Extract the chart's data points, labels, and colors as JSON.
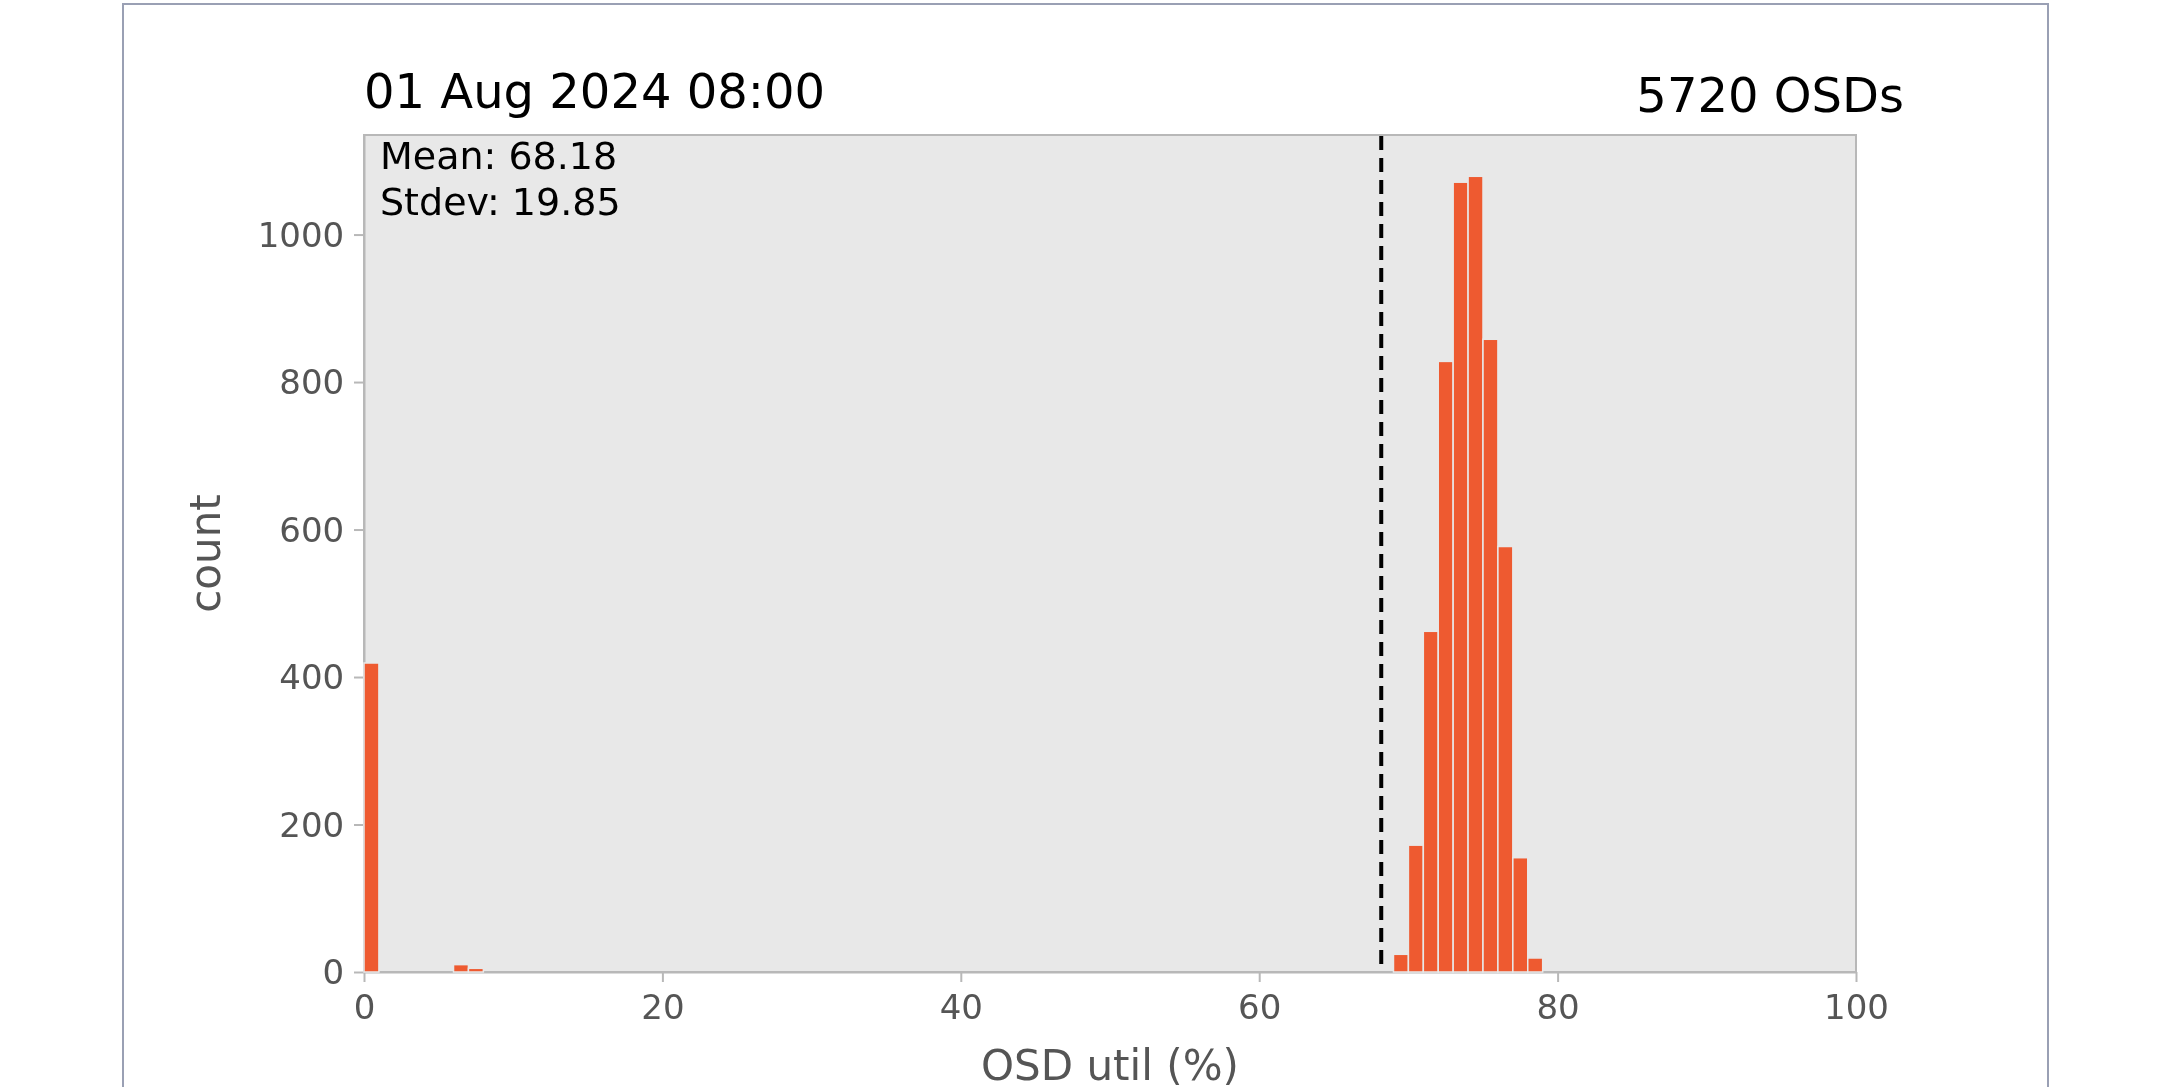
{
  "chart_data": {
    "type": "histogram",
    "title": "01 Aug 2024 08:00",
    "subtitle": "5720 OSDs",
    "xlabel": "OSD util (%)",
    "ylabel": "count",
    "bins": [
      0,
      1,
      2,
      3,
      4,
      5,
      6,
      7,
      8,
      9,
      10,
      11,
      12,
      13,
      14,
      15,
      16,
      17,
      18,
      19,
      20,
      21,
      22,
      23,
      24,
      25,
      26,
      27,
      28,
      29,
      30,
      31,
      32,
      33,
      34,
      35,
      36,
      37,
      38,
      39,
      40,
      41,
      42,
      43,
      44,
      45,
      46,
      47,
      48,
      49,
      50,
      51,
      52,
      53,
      54,
      55,
      56,
      57,
      58,
      59,
      60,
      61,
      62,
      63,
      64,
      65,
      66,
      67,
      68,
      69,
      70,
      71,
      72,
      73,
      74,
      75,
      76,
      77,
      78,
      79,
      80,
      81,
      82,
      83,
      84,
      85,
      86,
      87,
      88,
      89,
      90,
      91,
      92,
      93,
      94,
      95,
      96,
      97,
      98,
      99,
      100
    ],
    "values": [
      419,
      0,
      0,
      0,
      0,
      0,
      10,
      5,
      0,
      0,
      0,
      0,
      0,
      0,
      0,
      0,
      0,
      0,
      0,
      0,
      0,
      0,
      0,
      0,
      0,
      0,
      0,
      0,
      0,
      0,
      0,
      0,
      0,
      0,
      0,
      0,
      0,
      0,
      0,
      0,
      0,
      0,
      0,
      0,
      0,
      0,
      0,
      0,
      0,
      0,
      0,
      0,
      0,
      0,
      0,
      0,
      0,
      0,
      0,
      0,
      0,
      0,
      0,
      0,
      0,
      0,
      0,
      0,
      0,
      24,
      172,
      462,
      828,
      1071,
      1079,
      858,
      577,
      155,
      19,
      0,
      0,
      0,
      0,
      0,
      0,
      0,
      0,
      0,
      0,
      0,
      0,
      0,
      0,
      0,
      0,
      0,
      0,
      0,
      0,
      0
    ],
    "color": "#ee5a30",
    "xlim": [
      0,
      100
    ],
    "xticks": [
      0,
      20,
      40,
      60,
      80,
      100
    ],
    "ylim": [
      0,
      1135
    ],
    "yticks": [
      0,
      200,
      400,
      600,
      800,
      1000
    ],
    "ref_lines": [
      {
        "axis": "x",
        "value": 68.18,
        "color": "#000000",
        "line_style": "dashed"
      }
    ],
    "annotations": [
      "Mean: 68.18",
      "Stdev: 19.85"
    ],
    "grid": false
  }
}
